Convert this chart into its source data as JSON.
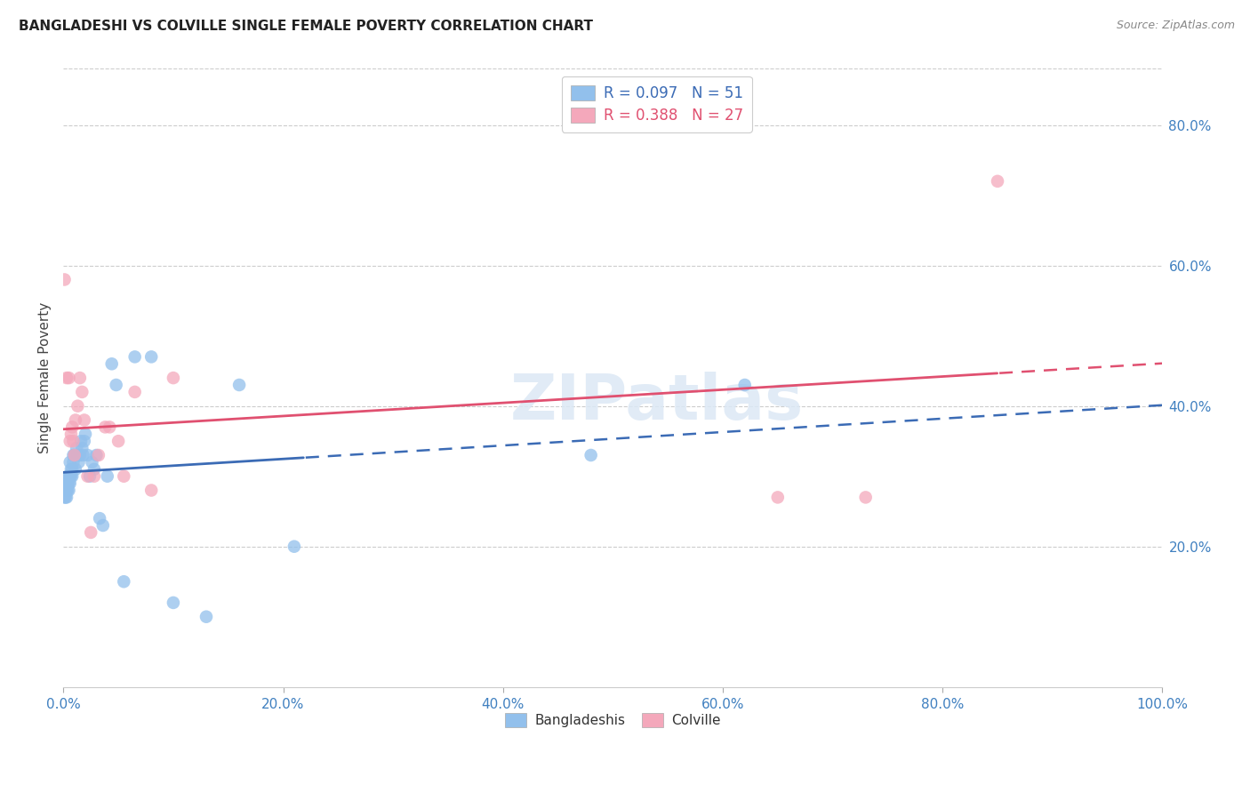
{
  "title": "BANGLADESHI VS COLVILLE SINGLE FEMALE POVERTY CORRELATION CHART",
  "source": "Source: ZipAtlas.com",
  "ylabel": "Single Female Poverty",
  "bangladeshi_R": 0.097,
  "bangladeshi_N": 51,
  "colville_R": 0.388,
  "colville_N": 27,
  "bangladeshi_color": "#92C0EC",
  "colville_color": "#F4A8BB",
  "bangladeshi_line_color": "#3B6BB5",
  "colville_line_color": "#E05070",
  "bangladeshi_x": [
    0.001,
    0.002,
    0.002,
    0.003,
    0.003,
    0.003,
    0.004,
    0.004,
    0.004,
    0.005,
    0.005,
    0.005,
    0.006,
    0.006,
    0.006,
    0.007,
    0.007,
    0.008,
    0.008,
    0.009,
    0.009,
    0.01,
    0.011,
    0.012,
    0.013,
    0.014,
    0.015,
    0.016,
    0.017,
    0.018,
    0.019,
    0.02,
    0.022,
    0.024,
    0.026,
    0.028,
    0.03,
    0.033,
    0.036,
    0.04,
    0.044,
    0.048,
    0.055,
    0.065,
    0.08,
    0.1,
    0.13,
    0.16,
    0.21,
    0.48,
    0.62
  ],
  "bangladeshi_y": [
    0.27,
    0.27,
    0.28,
    0.28,
    0.27,
    0.29,
    0.28,
    0.29,
    0.3,
    0.28,
    0.3,
    0.29,
    0.3,
    0.32,
    0.29,
    0.31,
    0.3,
    0.31,
    0.3,
    0.33,
    0.32,
    0.33,
    0.31,
    0.34,
    0.33,
    0.32,
    0.33,
    0.35,
    0.34,
    0.33,
    0.35,
    0.36,
    0.33,
    0.3,
    0.32,
    0.31,
    0.33,
    0.24,
    0.23,
    0.3,
    0.46,
    0.43,
    0.15,
    0.47,
    0.47,
    0.12,
    0.1,
    0.43,
    0.2,
    0.33,
    0.43
  ],
  "colville_x": [
    0.001,
    0.003,
    0.005,
    0.006,
    0.007,
    0.008,
    0.009,
    0.01,
    0.011,
    0.013,
    0.015,
    0.017,
    0.019,
    0.022,
    0.025,
    0.028,
    0.032,
    0.038,
    0.042,
    0.05,
    0.055,
    0.065,
    0.08,
    0.1,
    0.65,
    0.73,
    0.85
  ],
  "colville_y": [
    0.58,
    0.44,
    0.44,
    0.35,
    0.36,
    0.37,
    0.35,
    0.33,
    0.38,
    0.4,
    0.44,
    0.42,
    0.38,
    0.3,
    0.22,
    0.3,
    0.33,
    0.37,
    0.37,
    0.35,
    0.3,
    0.42,
    0.28,
    0.44,
    0.27,
    0.27,
    0.72
  ],
  "xlim": [
    0.0,
    1.0
  ],
  "ylim": [
    0.0,
    0.88
  ],
  "xtick_vals": [
    0.0,
    0.2,
    0.4,
    0.6,
    0.8,
    1.0
  ],
  "xtick_labels": [
    "0.0%",
    "20.0%",
    "40.0%",
    "60.0%",
    "80.0%",
    "100.0%"
  ],
  "ytick_vals": [
    0.2,
    0.4,
    0.6,
    0.8
  ],
  "ytick_labels": [
    "20.0%",
    "40.0%",
    "60.0%",
    "80.0%"
  ],
  "grid_color": "#cccccc",
  "watermark": "ZIPatlas",
  "watermark_color": "#dce8f5",
  "background_color": "#ffffff"
}
